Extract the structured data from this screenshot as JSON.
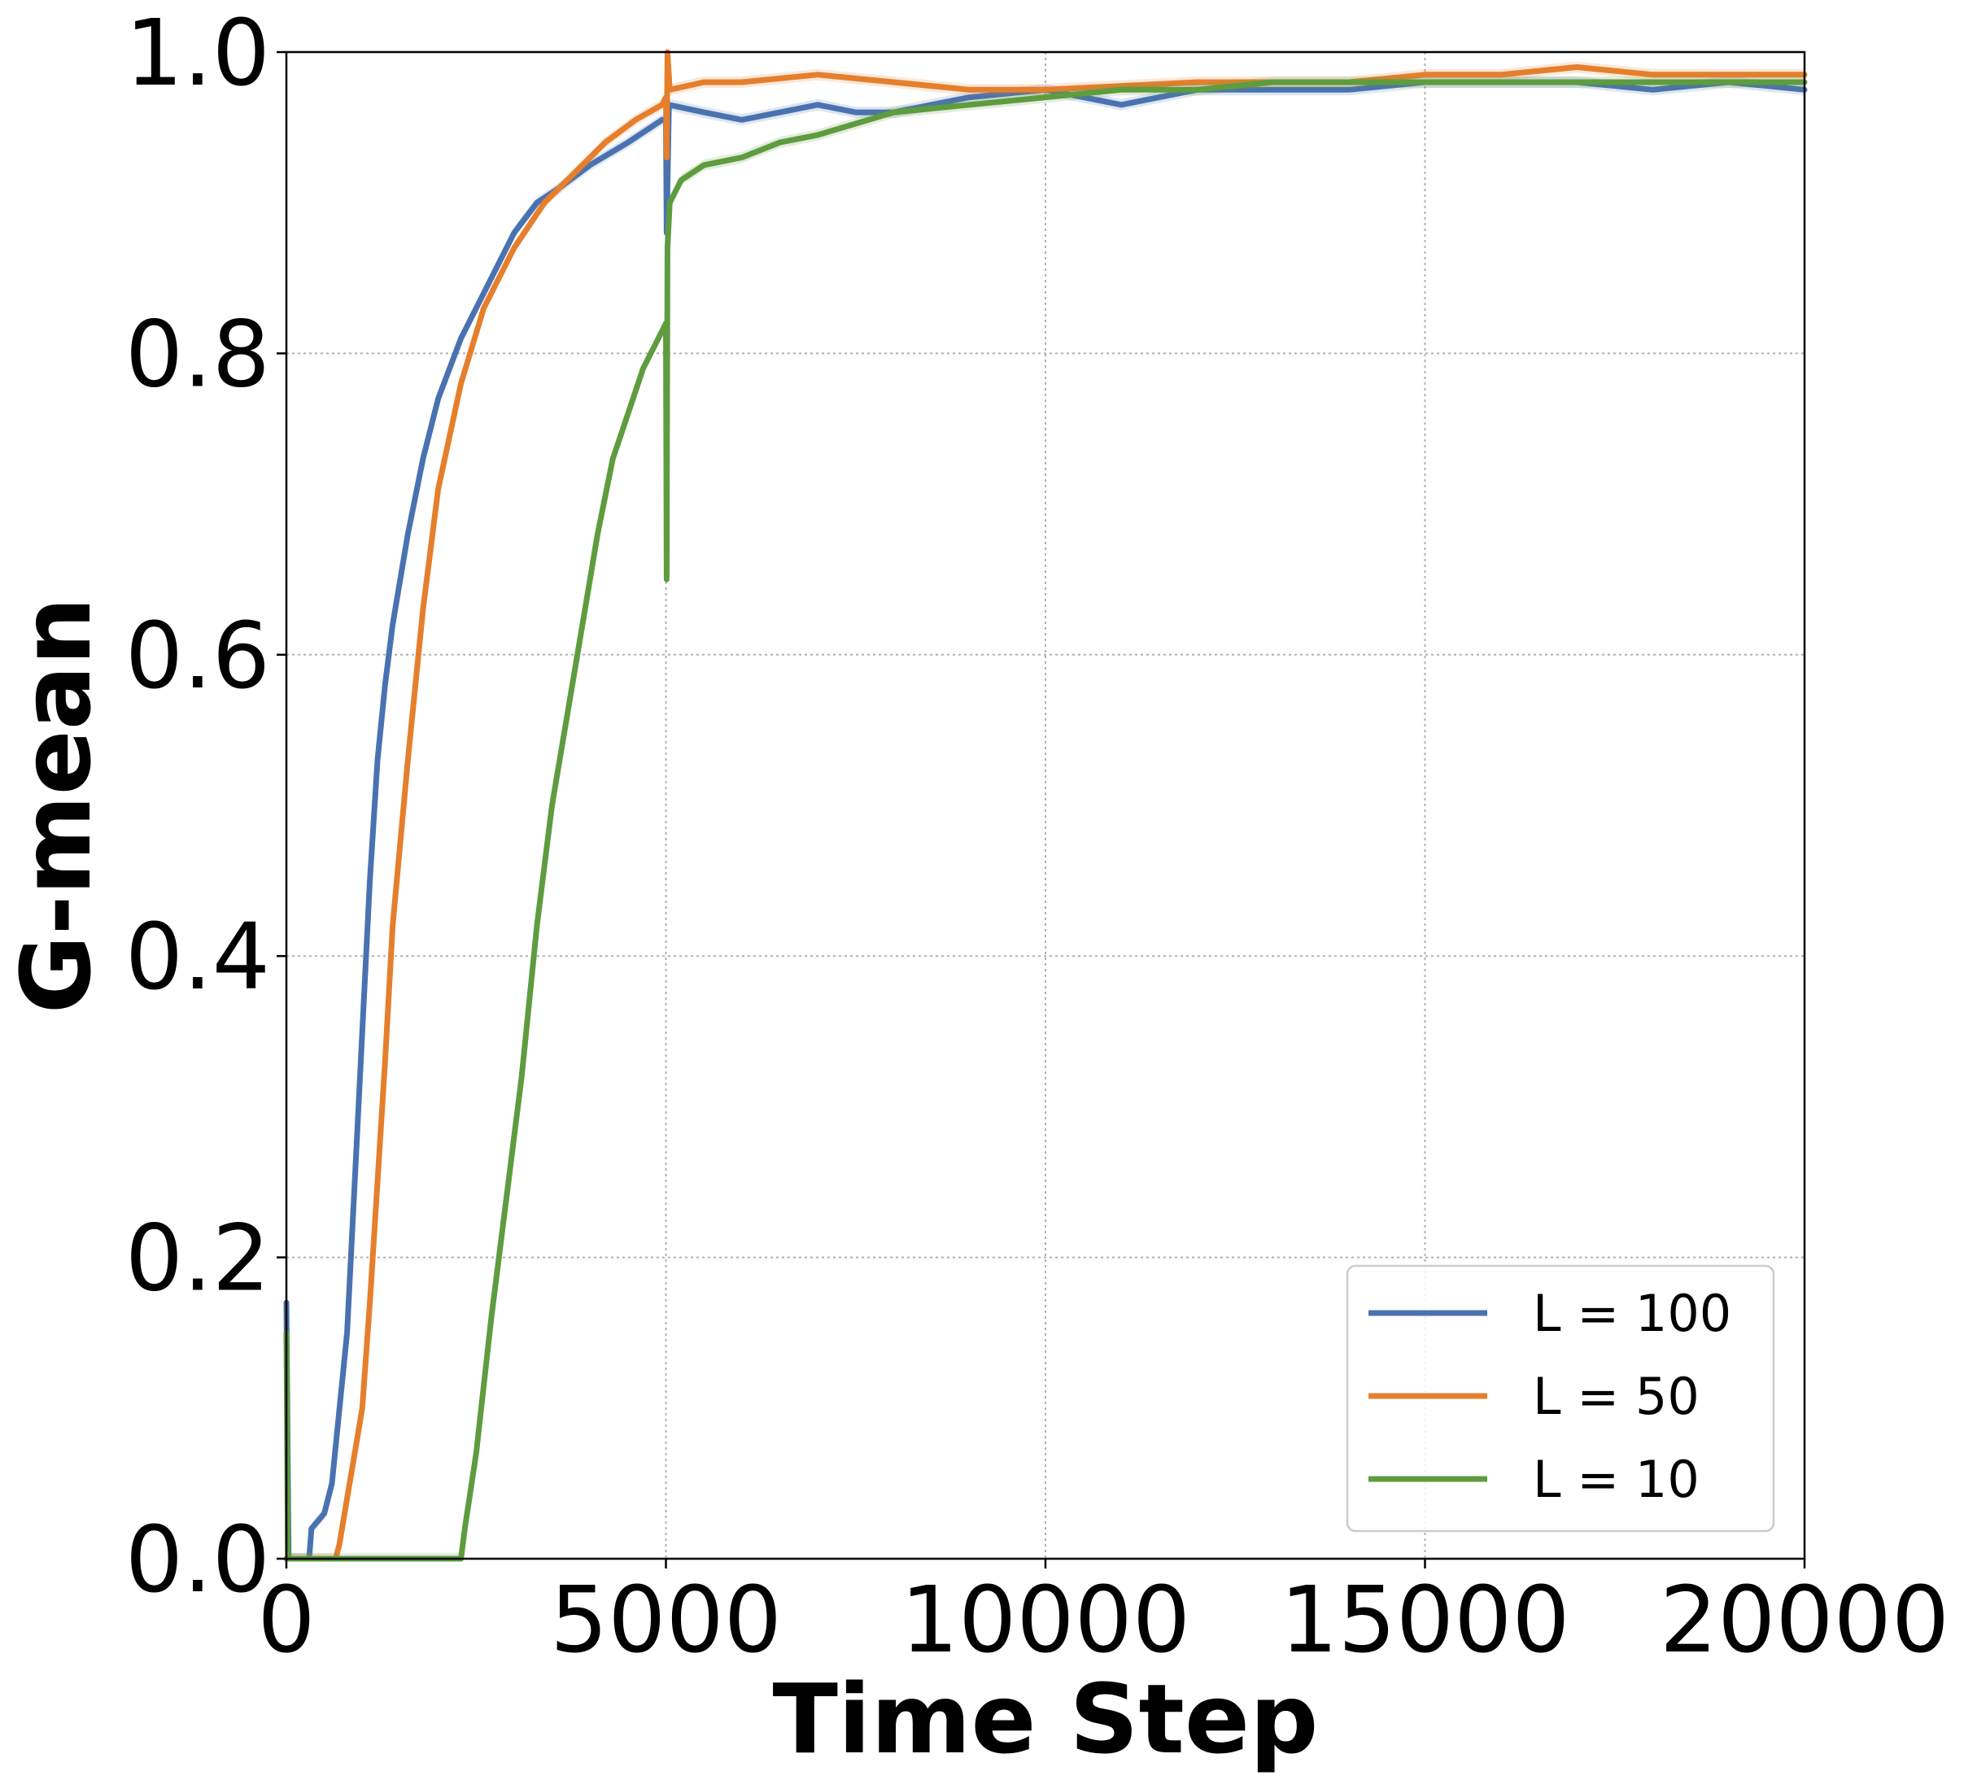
{
  "chart_data": {
    "type": "line",
    "title": "",
    "xlabel": "Time Step",
    "ylabel": "G-mean",
    "xlim": [
      0,
      20000
    ],
    "ylim": [
      0.0,
      1.0
    ],
    "xticks": [
      "0",
      "5000",
      "10000",
      "15000",
      "20000"
    ],
    "yticks": [
      "0.0",
      "0.2",
      "0.4",
      "0.6",
      "0.8",
      "1.0"
    ],
    "grid": true,
    "legend_position": "bottom-right",
    "series": [
      {
        "name": "L = 100",
        "color": "#4a72b0",
        "points": [
          [
            0,
            0.17
          ],
          [
            30,
            0.0
          ],
          [
            300,
            0.0
          ],
          [
            330,
            0.02
          ],
          [
            500,
            0.03
          ],
          [
            600,
            0.05
          ],
          [
            700,
            0.1
          ],
          [
            800,
            0.15
          ],
          [
            900,
            0.25
          ],
          [
            1000,
            0.35
          ],
          [
            1100,
            0.45
          ],
          [
            1200,
            0.53
          ],
          [
            1300,
            0.58
          ],
          [
            1400,
            0.62
          ],
          [
            1600,
            0.68
          ],
          [
            1800,
            0.73
          ],
          [
            2000,
            0.77
          ],
          [
            2300,
            0.81
          ],
          [
            2600,
            0.84
          ],
          [
            3000,
            0.88
          ],
          [
            3300,
            0.9
          ],
          [
            3600,
            0.91
          ],
          [
            4000,
            0.925
          ],
          [
            4500,
            0.94
          ],
          [
            4950,
            0.955
          ],
          [
            5000,
            0.955
          ],
          [
            5010,
            0.88
          ],
          [
            5040,
            0.965
          ],
          [
            5500,
            0.96
          ],
          [
            6000,
            0.955
          ],
          [
            6500,
            0.96
          ],
          [
            7000,
            0.965
          ],
          [
            7500,
            0.96
          ],
          [
            8000,
            0.96
          ],
          [
            8500,
            0.965
          ],
          [
            9000,
            0.97
          ],
          [
            10000,
            0.975
          ],
          [
            10500,
            0.97
          ],
          [
            11000,
            0.965
          ],
          [
            11500,
            0.97
          ],
          [
            12000,
            0.975
          ],
          [
            13000,
            0.975
          ],
          [
            14000,
            0.975
          ],
          [
            15000,
            0.98
          ],
          [
            16000,
            0.98
          ],
          [
            17000,
            0.98
          ],
          [
            18000,
            0.975
          ],
          [
            19000,
            0.98
          ],
          [
            20000,
            0.975
          ]
        ]
      },
      {
        "name": "L = 50",
        "color": "#e57f2c",
        "points": [
          [
            0,
            0.0
          ],
          [
            650,
            0.0
          ],
          [
            700,
            0.01
          ],
          [
            800,
            0.04
          ],
          [
            900,
            0.07
          ],
          [
            1000,
            0.1
          ],
          [
            1100,
            0.17
          ],
          [
            1200,
            0.25
          ],
          [
            1300,
            0.33
          ],
          [
            1400,
            0.42
          ],
          [
            1600,
            0.53
          ],
          [
            1800,
            0.63
          ],
          [
            2000,
            0.71
          ],
          [
            2300,
            0.78
          ],
          [
            2600,
            0.83
          ],
          [
            3000,
            0.87
          ],
          [
            3400,
            0.9
          ],
          [
            3800,
            0.92
          ],
          [
            4200,
            0.94
          ],
          [
            4600,
            0.955
          ],
          [
            4950,
            0.965
          ],
          [
            5000,
            0.97
          ],
          [
            5010,
            0.93
          ],
          [
            5020,
            1.0
          ],
          [
            5050,
            0.975
          ],
          [
            5500,
            0.98
          ],
          [
            6000,
            0.98
          ],
          [
            7000,
            0.985
          ],
          [
            8000,
            0.98
          ],
          [
            9000,
            0.975
          ],
          [
            10000,
            0.975
          ],
          [
            12000,
            0.98
          ],
          [
            14000,
            0.98
          ],
          [
            15000,
            0.985
          ],
          [
            16000,
            0.985
          ],
          [
            17000,
            0.99
          ],
          [
            18000,
            0.985
          ],
          [
            19000,
            0.985
          ],
          [
            20000,
            0.985
          ]
        ]
      },
      {
        "name": "L = 10",
        "color": "#5e9c3f",
        "points": [
          [
            0,
            0.15
          ],
          [
            20,
            0.0
          ],
          [
            2300,
            0.0
          ],
          [
            2350,
            0.02
          ],
          [
            2500,
            0.07
          ],
          [
            2700,
            0.16
          ],
          [
            2900,
            0.24
          ],
          [
            3100,
            0.32
          ],
          [
            3300,
            0.42
          ],
          [
            3500,
            0.5
          ],
          [
            3700,
            0.56
          ],
          [
            3900,
            0.62
          ],
          [
            4100,
            0.68
          ],
          [
            4300,
            0.73
          ],
          [
            4500,
            0.76
          ],
          [
            4700,
            0.79
          ],
          [
            4900,
            0.81
          ],
          [
            5000,
            0.82
          ],
          [
            5010,
            0.65
          ],
          [
            5020,
            0.87
          ],
          [
            5050,
            0.9
          ],
          [
            5200,
            0.915
          ],
          [
            5500,
            0.925
          ],
          [
            6000,
            0.93
          ],
          [
            6500,
            0.94
          ],
          [
            7000,
            0.945
          ],
          [
            8000,
            0.96
          ],
          [
            9000,
            0.965
          ],
          [
            10000,
            0.97
          ],
          [
            11000,
            0.975
          ],
          [
            12000,
            0.975
          ],
          [
            13000,
            0.98
          ],
          [
            14000,
            0.98
          ],
          [
            15000,
            0.98
          ],
          [
            16000,
            0.98
          ],
          [
            17000,
            0.98
          ],
          [
            18000,
            0.98
          ],
          [
            19000,
            0.98
          ],
          [
            20000,
            0.98
          ]
        ]
      }
    ]
  }
}
